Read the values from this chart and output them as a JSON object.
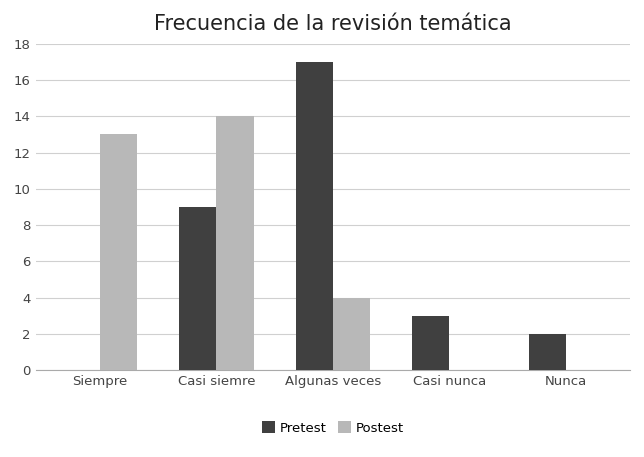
{
  "title": "Frecuencia de la revisión temática",
  "categories": [
    "Siempre",
    "Casi siemre",
    "Algunas veces",
    "Casi nunca",
    "Nunca"
  ],
  "pretest": [
    0,
    9,
    17,
    3,
    2
  ],
  "postest": [
    13,
    14,
    4,
    0,
    0
  ],
  "pretest_color": "#404040",
  "postest_color": "#b8b8b8",
  "legend_labels": [
    "Pretest",
    "Postest"
  ],
  "ylim": [
    0,
    18
  ],
  "yticks": [
    0,
    2,
    4,
    6,
    8,
    10,
    12,
    14,
    16,
    18
  ],
  "bar_width": 0.32,
  "background_color": "#ffffff",
  "title_fontsize": 15,
  "tick_fontsize": 9.5,
  "legend_fontsize": 9.5
}
